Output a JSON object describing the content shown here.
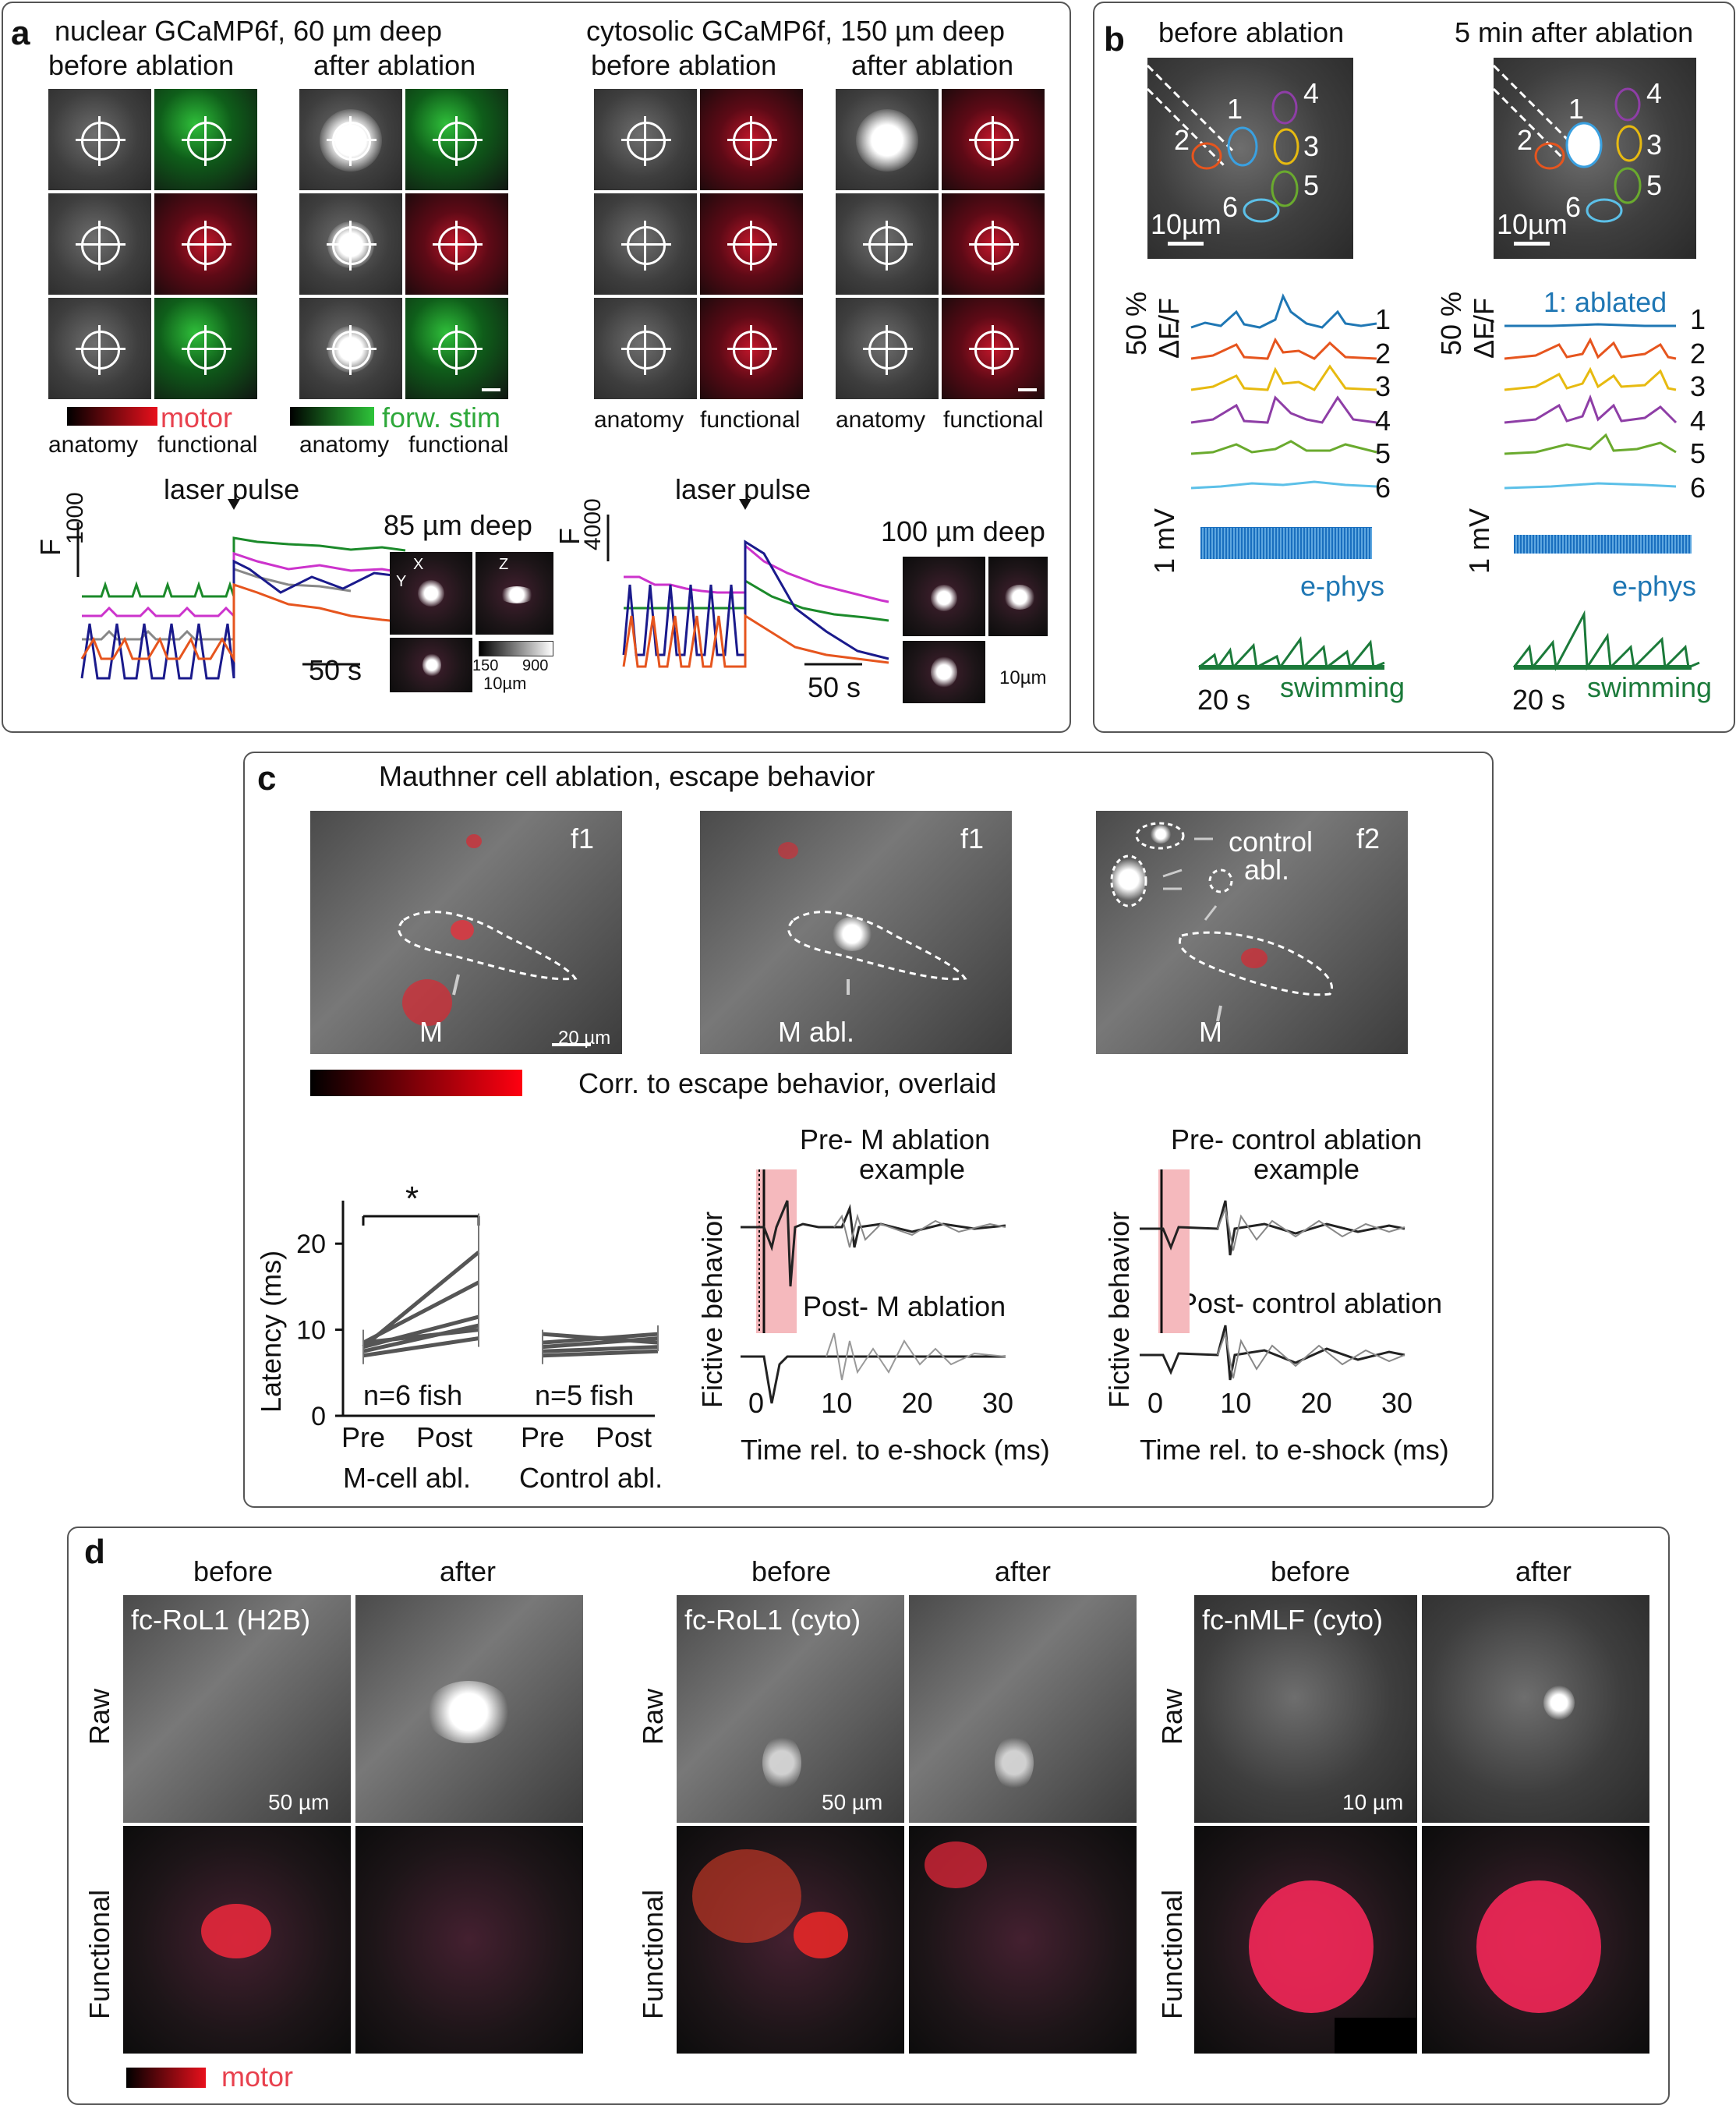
{
  "panel_a": {
    "label": "a",
    "nuclear_title": "nuclear GCaMP6f, 60 µm deep",
    "cytosolic_title": "cytosolic GCaMP6f, 150 µm deep",
    "before": "before ablation",
    "after": "after ablation",
    "motor": "motor",
    "forw_stim": "forw. stim",
    "anatomy": "anatomy",
    "functional": "functional",
    "laser_pulse": "laser pulse",
    "y_label": "F",
    "y_scale_left": "1000",
    "y_scale_right": "4000",
    "time_scale": "50 s",
    "deep_left": "85 µm deep",
    "deep_right": "100 µm deep",
    "cb_min": "150",
    "cb_max": "900",
    "scale_10um": "10µm",
    "ax_x": "X",
    "ax_y": "Y",
    "ax_z": "Z"
  },
  "panel_b": {
    "label": "b",
    "before": "before ablation",
    "after": "5 min after ablation",
    "scale": "10µm",
    "dff": "50 %",
    "dff2": "ΔF/F",
    "ablated": "1: ablated",
    "ephys_scale": "1 mV",
    "ephys": "e-phys",
    "time_scale": "20 s",
    "swimming": "swimming",
    "cells": [
      "1",
      "2",
      "3",
      "4",
      "5",
      "6"
    ],
    "trace_colors": [
      "#1f77b4",
      "#e6550d",
      "#e7ba10",
      "#8e3ea6",
      "#6aaa2e",
      "#5cc0e8"
    ]
  },
  "panel_c": {
    "label": "c",
    "title": "Mauthner cell ablation, escape behavior",
    "f1": "f1",
    "f2": "f2",
    "M": "M",
    "M_abl": "M abl.",
    "control_abl_1": "control",
    "control_abl_2": "abl.",
    "scale": "20 µm",
    "corr": "Corr. to escape behavior, overlaid",
    "ylabel": "Latency (ms)",
    "star": "*",
    "n_m": "n=6 fish",
    "n_c": "n=5 fish",
    "pre": "Pre",
    "post": "Post",
    "m_abl": "M-cell abl.",
    "c_abl": "Control abl.",
    "pre_m_1": "Pre- M ablation",
    "pre_m_2": "example",
    "post_m": "Post- M ablation",
    "pre_c_1": "Pre- control ablation",
    "pre_c_2": "example",
    "post_c": "Post- control ablation",
    "fictive": "Fictive behavior",
    "xlabel": "Time rel. to e-shock (ms)"
  },
  "panel_d": {
    "label": "d",
    "before": "before",
    "after": "after",
    "raw": "Raw",
    "functional": "Functional",
    "fc1": "fc-RoL1 (H2B)",
    "fc2": "fc-RoL1 (cyto)",
    "fc3": "fc-nMLF (cyto)",
    "scale_50": "50 µm",
    "scale_10": "10 µm",
    "motor": "motor"
  },
  "chart_data": [
    {
      "type": "line",
      "title": "Latency (ms)",
      "categories": [
        "Pre",
        "Post"
      ],
      "ylim": [
        0,
        25
      ],
      "yticks": [
        0,
        10,
        20
      ],
      "groups": [
        "M-cell abl.",
        "Control abl."
      ],
      "series": [
        {
          "values": [
            8,
            19
          ]
        },
        {
          "values": [
            8.5,
            15.5
          ]
        },
        {
          "values": [
            8,
            11.5
          ]
        },
        {
          "values": [
            7.5,
            10.5
          ]
        },
        {
          "values": [
            8.5,
            10
          ]
        },
        {
          "values": [
            7,
            9
          ]
        },
        {
          "values": [
            9.5,
            8.5
          ]
        },
        {
          "values": [
            8,
            9
          ]
        },
        {
          "values": [
            7.5,
            8
          ]
        },
        {
          "values": [
            7,
            7.5
          ]
        },
        {
          "values": [
            8.5,
            9.5
          ]
        }
      ]
    },
    {
      "type": "line",
      "xlabel": "Time rel. to e-shock (ms)",
      "ylabel": "Fictive behavior",
      "xlim": [
        0,
        30
      ],
      "xticks": [
        0,
        10,
        20,
        30
      ]
    }
  ]
}
